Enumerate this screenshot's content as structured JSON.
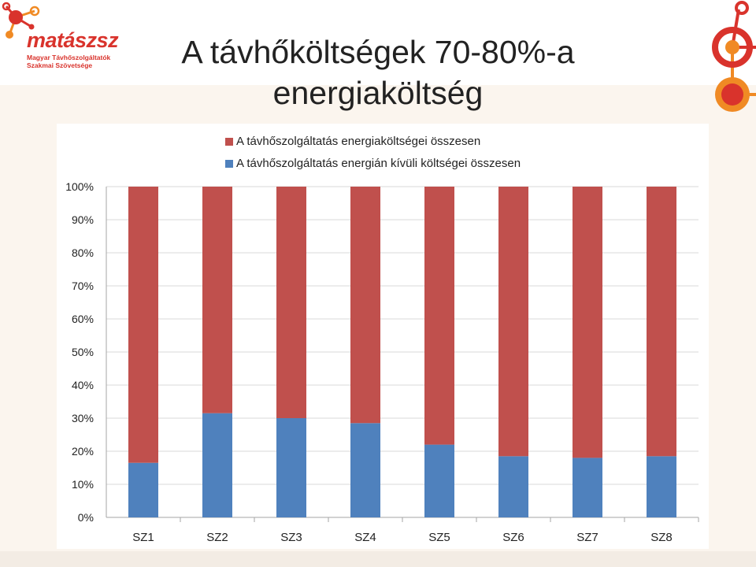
{
  "slide": {
    "title_line1": "A távhőköltségek 70-80%-a",
    "title_line2": "energiaköltség",
    "logo": {
      "name": "matászsz",
      "subtitle_line1": "Magyar Távhőszolgáltatók",
      "subtitle_line2": "Szakmai Szövetsége"
    }
  },
  "colors": {
    "energy": "#c0504d",
    "non_energy": "#4f81bd",
    "brand_red": "#d9332c",
    "brand_orange": "#f08a24"
  },
  "chart_data": {
    "type": "bar",
    "stacked": true,
    "percent_stacked": true,
    "categories": [
      "SZ1",
      "SZ2",
      "SZ3",
      "SZ4",
      "SZ5",
      "SZ6",
      "SZ7",
      "SZ8"
    ],
    "series": [
      {
        "name": "A távhőszolgáltatás energián kívüli költségei összesen",
        "color": "#4f81bd",
        "values": [
          16.5,
          31.5,
          30,
          28.5,
          22,
          18.5,
          18,
          18.5
        ]
      },
      {
        "name": "A távhőszolgáltatás energiaköltségei összesen",
        "color": "#c0504d",
        "values": [
          83.5,
          68.5,
          70,
          71.5,
          78,
          81.5,
          82,
          81.5
        ]
      }
    ],
    "y_ticks": [
      "0%",
      "10%",
      "20%",
      "30%",
      "40%",
      "50%",
      "60%",
      "70%",
      "80%",
      "90%",
      "100%"
    ],
    "ylim": [
      0,
      100
    ],
    "grid": true,
    "legend_position": "top",
    "legend_order": [
      "A távhőszolgáltatás energiaköltségei összesen",
      "A távhőszolgáltatás energián kívüli költségei összesen"
    ]
  }
}
